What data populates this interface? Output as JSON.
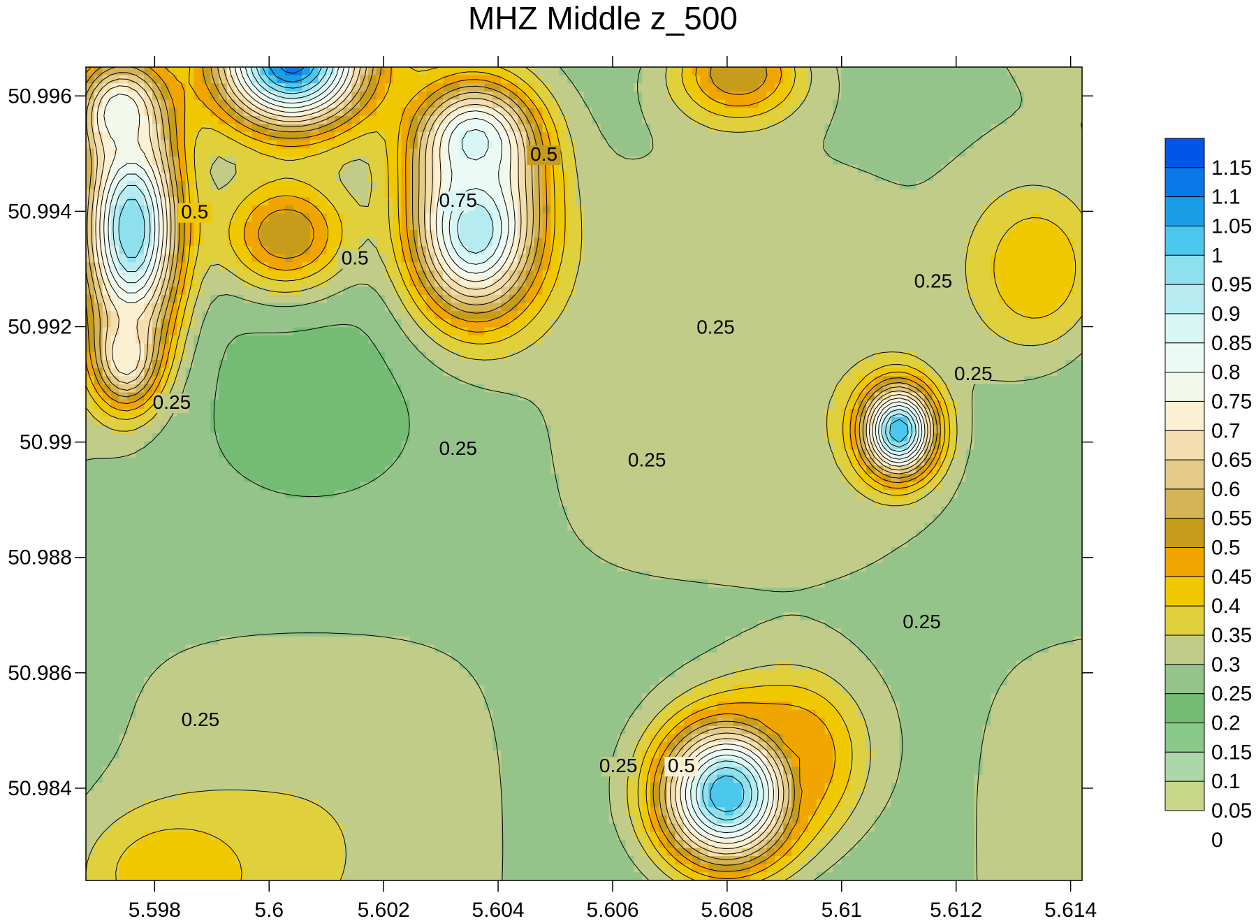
{
  "chart_data": {
    "type": "contour",
    "title": "MHZ Middle z_500",
    "xlabel": "",
    "ylabel": "",
    "xlim": [
      5.5968,
      5.6142
    ],
    "ylim": [
      50.9824,
      50.9965
    ],
    "x_ticks": [
      "5.598",
      "5.6",
      "5.602",
      "5.604",
      "5.606",
      "5.608",
      "5.61",
      "5.612",
      "5.614"
    ],
    "y_ticks": [
      "50.984",
      "50.986",
      "50.988",
      "50.99",
      "50.992",
      "50.994",
      "50.996"
    ],
    "colorbar": {
      "levels": [
        "1.15",
        "1.1",
        "1.05",
        "1",
        "0.95",
        "0.9",
        "0.85",
        "0.8",
        "0.75",
        "0.7",
        "0.65",
        "0.6",
        "0.55",
        "0.5",
        "0.45",
        "0.4",
        "0.35",
        "0.3",
        "0.25",
        "0.2",
        "0.15",
        "0.1",
        "0.05",
        "0"
      ],
      "colors": [
        "#0055e8",
        "#0a78e8",
        "#1a9ee8",
        "#4cc8ee",
        "#8ee0ef",
        "#b6ecf1",
        "#d8f6f4",
        "#ebfaf5",
        "#f3f8ec",
        "#fbf0d2",
        "#f4deaf",
        "#e4cc88",
        "#d4b355",
        "#c69c1a",
        "#f0a500",
        "#f0c800",
        "#e0d03c",
        "#c0cc88",
        "#94c48a",
        "#74bc74",
        "#88c888",
        "#acd8a8",
        "#c8d688"
      ]
    },
    "contour_labels": [
      {
        "text": "0.5",
        "x": 5.5987,
        "y": 50.9939
      },
      {
        "text": "0.5",
        "x": 5.6015,
        "y": 50.9931
      },
      {
        "text": "0.75",
        "x": 5.6033,
        "y": 50.9941
      },
      {
        "text": "0.5",
        "x": 5.6048,
        "y": 50.9949
      },
      {
        "text": "0.25",
        "x": 5.5983,
        "y": 50.9906
      },
      {
        "text": "0.25",
        "x": 5.6033,
        "y": 50.9898
      },
      {
        "text": "0.25",
        "x": 5.6066,
        "y": 50.9896
      },
      {
        "text": "0.25",
        "x": 5.6078,
        "y": 50.9919
      },
      {
        "text": "0.25",
        "x": 5.6116,
        "y": 50.9927
      },
      {
        "text": "0.25",
        "x": 5.6123,
        "y": 50.9911
      },
      {
        "text": "0.25",
        "x": 5.6114,
        "y": 50.9868
      },
      {
        "text": "0.25",
        "x": 5.5988,
        "y": 50.9851
      },
      {
        "text": "0.25",
        "x": 5.6061,
        "y": 50.9843
      },
      {
        "text": "0.5",
        "x": 5.6072,
        "y": 50.9843
      }
    ],
    "hotspots": [
      {
        "x": 5.5976,
        "y": 50.9937,
        "peak": 0.95,
        "sx": 0.0006,
        "sy": 0.0014
      },
      {
        "x": 5.5974,
        "y": 50.9957,
        "peak": 0.75,
        "sx": 0.0005,
        "sy": 0.0006
      },
      {
        "x": 5.5975,
        "y": 50.9915,
        "peak": 0.7,
        "sx": 0.0004,
        "sy": 0.0006
      },
      {
        "x": 5.6004,
        "y": 50.9966,
        "peak": 1.08,
        "sx": 0.0009,
        "sy": 0.0008
      },
      {
        "x": 5.6036,
        "y": 50.9937,
        "peak": 0.9,
        "sx": 0.0008,
        "sy": 0.0011
      },
      {
        "x": 5.6036,
        "y": 50.9952,
        "peak": 0.82,
        "sx": 0.0007,
        "sy": 0.0007
      },
      {
        "x": 5.611,
        "y": 50.9902,
        "peak": 1.0,
        "sx": 0.00045,
        "sy": 0.00055
      },
      {
        "x": 5.608,
        "y": 50.9839,
        "peak": 1.0,
        "sx": 0.00085,
        "sy": 0.0009
      },
      {
        "x": 5.6092,
        "y": 50.9846,
        "peak": 0.45,
        "sx": 0.0009,
        "sy": 0.001
      },
      {
        "x": 5.6003,
        "y": 50.9936,
        "peak": 0.5,
        "sx": 0.0008,
        "sy": 0.0007
      },
      {
        "x": 5.599,
        "y": 50.9951,
        "peak": 0.3,
        "sx": 0.0007,
        "sy": 0.0006
      },
      {
        "x": 5.6082,
        "y": 50.9964,
        "peak": 0.5,
        "sx": 0.0008,
        "sy": 0.0006
      },
      {
        "x": 5.6134,
        "y": 50.993,
        "peak": 0.4,
        "sx": 0.0009,
        "sy": 0.0011
      },
      {
        "x": 5.5983,
        "y": 50.9825,
        "peak": 0.4,
        "sx": 0.0011,
        "sy": 0.0008
      }
    ]
  }
}
